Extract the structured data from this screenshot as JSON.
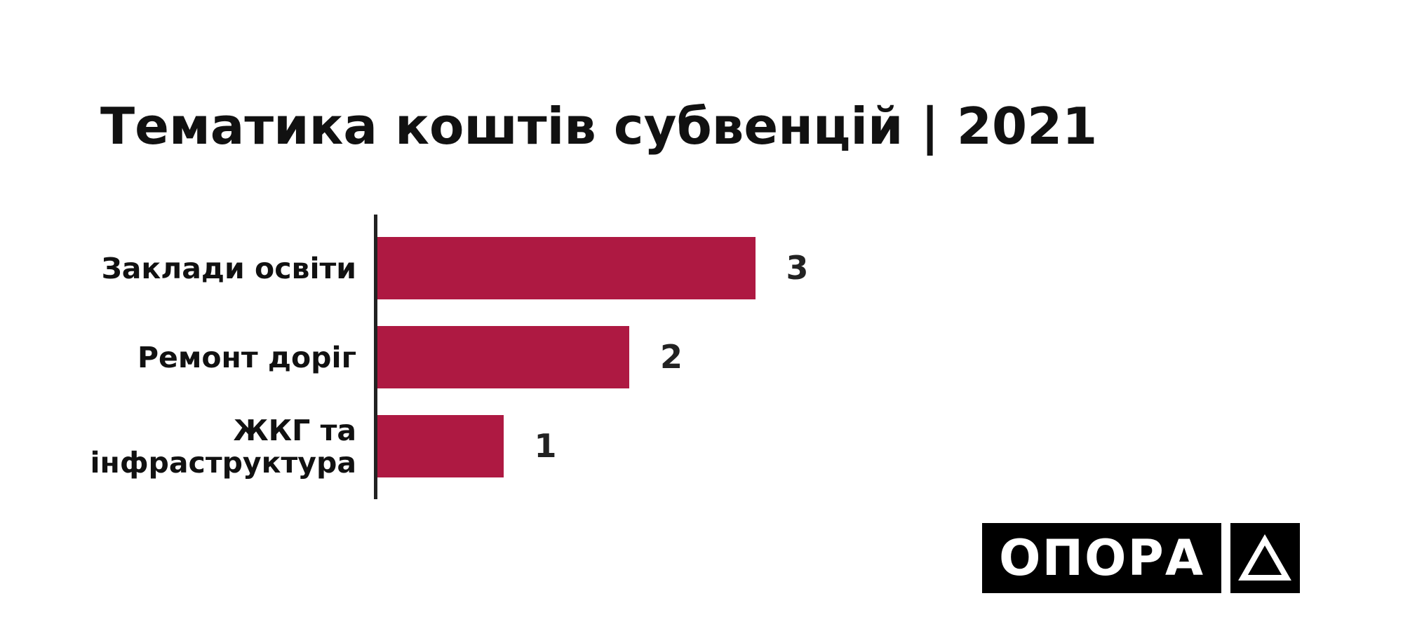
{
  "chart_data": {
    "type": "hbar",
    "title": "Тематика коштів субвенцій | 2021",
    "categories": [
      "Заклади освіти",
      "Ремонт доріг",
      "ЖКГ та інфраструктура"
    ],
    "values": [
      3,
      2,
      1
    ],
    "color": "#ae1942"
  },
  "logo": "ОПОРА"
}
